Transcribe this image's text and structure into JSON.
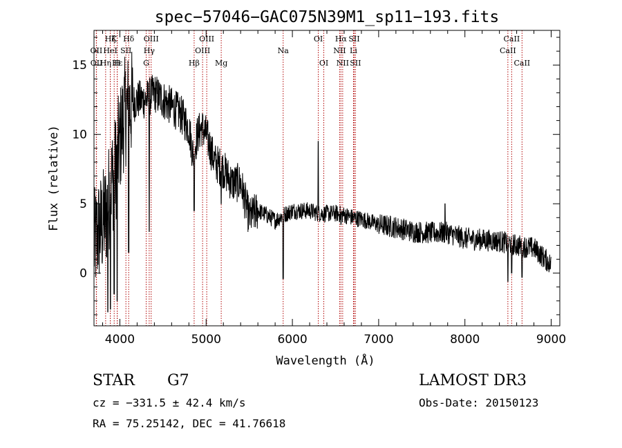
{
  "chart_data": {
    "type": "line",
    "title": "spec−57046−GAC075N39M1_sp11−193.fits",
    "xlabel": "Wavelength (Å)",
    "ylabel": "Flux (relative)",
    "xlim": [
      3700,
      9100
    ],
    "ylim": [
      -3.8,
      17.5
    ],
    "x_ticks": [
      4000,
      5000,
      6000,
      7000,
      8000,
      9000
    ],
    "y_ticks": [
      0,
      5,
      10,
      15
    ],
    "grid": false,
    "lines": [
      {
        "name": "CaII",
        "x": 3934,
        "label": "K",
        "row": 0
      },
      {
        "name": "CaII",
        "x": 3969,
        "label": "H",
        "row": 2
      },
      {
        "name": "Hdelta",
        "x": 4102,
        "label": "Hδ",
        "row": 0
      },
      {
        "name": "Hepsilon",
        "x": 3970,
        "label": "Hε",
        "row": 2
      },
      {
        "name": "OIII",
        "x": 4363,
        "label": "OIII",
        "row": 0
      },
      {
        "name": "Hgamma",
        "x": 4340,
        "label": "Hγ",
        "row": 1
      },
      {
        "name": "G",
        "x": 4305,
        "label": "G",
        "row": 2
      },
      {
        "name": "Hbeta",
        "x": 4861,
        "label": "Hβ",
        "row": 2
      },
      {
        "name": "OIII",
        "x": 4959,
        "label": "OIII",
        "row": 1
      },
      {
        "name": "OIII",
        "x": 5007,
        "label": "OIII",
        "row": 0
      },
      {
        "name": "Mg",
        "x": 5175,
        "label": "Mg",
        "row": 2
      },
      {
        "name": "Na",
        "x": 5893,
        "label": "Na",
        "row": 1
      },
      {
        "name": "OI",
        "x": 6300,
        "label": "OI",
        "row": 0
      },
      {
        "name": "OI",
        "x": 6364,
        "label": "OI",
        "row": 2
      },
      {
        "name": "NII",
        "x": 6548,
        "label": "NII",
        "row": 1
      },
      {
        "name": "Halpha",
        "x": 6563,
        "label": "Hα",
        "row": 0
      },
      {
        "name": "NII",
        "x": 6583,
        "label": "NII",
        "row": 2
      },
      {
        "name": "Li",
        "x": 6708,
        "label": "Li",
        "row": 1
      },
      {
        "name": "SII",
        "x": 6716,
        "label": "SII",
        "row": 0
      },
      {
        "name": "SII",
        "x": 6731,
        "label": "SII",
        "row": 2
      },
      {
        "name": "CaII",
        "x": 8498,
        "label": "CaII",
        "row": 1
      },
      {
        "name": "CaII",
        "x": 8542,
        "label": "CaII",
        "row": 0
      },
      {
        "name": "CaII",
        "x": 8662,
        "label": "CaII",
        "row": 2
      },
      {
        "name": "OII",
        "x": 3727,
        "label": "OII",
        "row": 1
      },
      {
        "name": "OII",
        "x": 3729,
        "label": "OII",
        "row": 2
      },
      {
        "name": "Hzeta",
        "x": 3889,
        "label": "Hζ",
        "row": 0
      },
      {
        "name": "HeI",
        "x": 3889,
        "label": "HeI",
        "row": 1
      },
      {
        "name": "SII",
        "x": 4070,
        "label": "SII",
        "row": 1
      },
      {
        "name": "Hepsilon2",
        "x": 3835,
        "label": "Hη",
        "row": 2
      }
    ],
    "series": [
      {
        "name": "flux",
        "color": "#000000",
        "noise": 0.45,
        "x": [
          3700,
          3750,
          3800,
          3850,
          3900,
          3950,
          4000,
          4050,
          4100,
          4150,
          4200,
          4300,
          4400,
          4500,
          4600,
          4700,
          4800,
          4850,
          4900,
          4950,
          5000,
          5100,
          5200,
          5300,
          5400,
          5500,
          5600,
          5700,
          5800,
          5900,
          6000,
          6100,
          6200,
          6300,
          6400,
          6500,
          6600,
          6700,
          6800,
          6900,
          7000,
          7200,
          7400,
          7600,
          7800,
          8000,
          8200,
          8400,
          8600,
          8800,
          9000
        ],
        "y": [
          2.0,
          3.0,
          3.5,
          4.5,
          6.5,
          7.5,
          9.5,
          11.5,
          12.0,
          12.2,
          12.5,
          12.5,
          13.0,
          12.5,
          12.0,
          11.5,
          10.5,
          8.5,
          10.0,
          10.5,
          10.0,
          8.0,
          7.5,
          6.5,
          6.5,
          4.0,
          4.5,
          4.2,
          3.8,
          4.2,
          4.5,
          4.5,
          4.5,
          4.3,
          4.3,
          4.3,
          4.2,
          4.0,
          3.9,
          3.7,
          3.5,
          3.3,
          3.0,
          2.9,
          2.9,
          2.5,
          2.4,
          2.3,
          2.0,
          1.8,
          0.6
        ]
      },
      {
        "name": "features",
        "x": [
          3860,
          3890,
          3934,
          3969,
          4102,
          4340,
          4861,
          5175,
          5893,
          6300,
          6563,
          7770,
          8498,
          8542,
          8662
        ],
        "y": [
          -2.8,
          -2.6,
          -1.5,
          -2.0,
          1.5,
          3.0,
          4.5,
          5.0,
          -0.4,
          9.5,
          3.5,
          5.0,
          -0.6,
          0.0,
          -0.3
        ]
      }
    ]
  },
  "info": {
    "object_class": "STAR",
    "subclass": "G7",
    "survey": "LAMOST DR3",
    "cz": "cz = −331.5 ± 42.4 km/s",
    "obs_date": "Obs-Date: 20150123",
    "radec": "RA =  75.25142, DEC =  41.76618"
  }
}
